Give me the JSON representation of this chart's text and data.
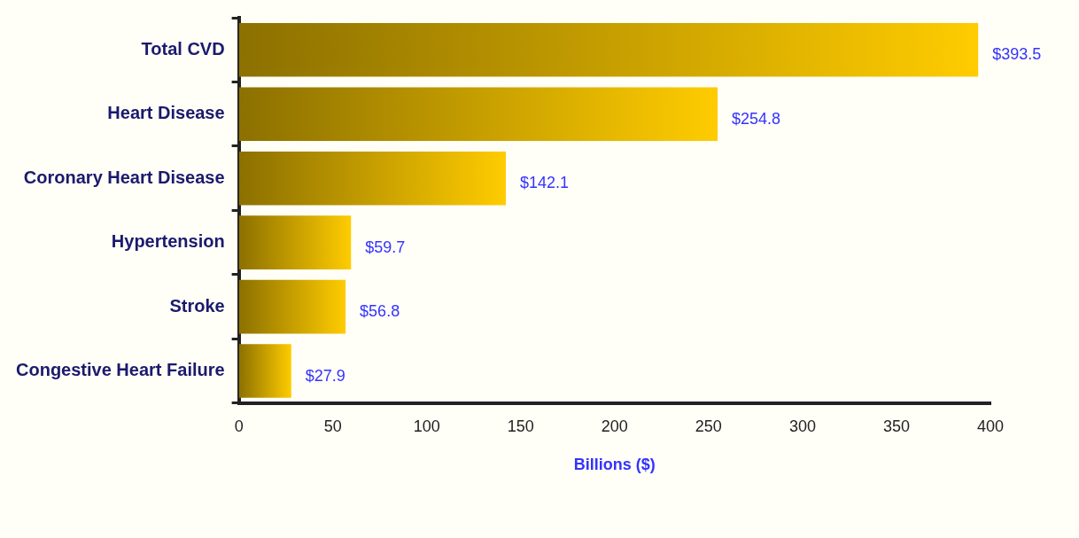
{
  "chart_data": {
    "type": "bar",
    "orientation": "horizontal",
    "categories": [
      "Total CVD",
      "Heart Disease",
      "Coronary Heart Disease",
      "Hypertension",
      "Stroke",
      "Congestive Heart Failure"
    ],
    "values": [
      393.5,
      254.8,
      142.1,
      59.7,
      56.8,
      27.9
    ],
    "value_labels": [
      "$393.5",
      "$254.8",
      "$142.1",
      "$59.7",
      "$56.8",
      "$27.9"
    ],
    "color": "#ffcc00",
    "xlabel": "Billions ($)",
    "xlim": [
      0,
      400
    ],
    "xticks": [
      0,
      50,
      100,
      150,
      200,
      250,
      300,
      350,
      400
    ],
    "grid": false,
    "legend": false
  }
}
